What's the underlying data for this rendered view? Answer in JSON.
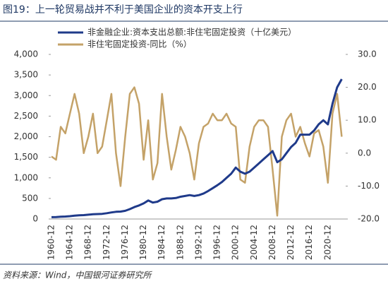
{
  "chart_data": {
    "type": "line",
    "title": "图19：上一轮贸易战并不利于美国企业的资本开支上行",
    "source": "资料来源：Wind，中国银河证券研究所",
    "categories": [
      "1960-12",
      null,
      null,
      null,
      "1964-12",
      null,
      null,
      null,
      "1968-12",
      null,
      null,
      null,
      "1972-12",
      null,
      null,
      null,
      "1976-12",
      null,
      null,
      null,
      "1980-12",
      null,
      null,
      null,
      "1984-12",
      null,
      null,
      null,
      "1988-12",
      null,
      null,
      null,
      "1992-12",
      null,
      null,
      null,
      "1996-12",
      null,
      null,
      null,
      "2000-12",
      null,
      null,
      null,
      "2004-12",
      null,
      null,
      null,
      "2008-12",
      null,
      null,
      null,
      "2012-12",
      null,
      null,
      null,
      "2016-12",
      null,
      null,
      null,
      "2020-12",
      null,
      null,
      null
    ],
    "series": [
      {
        "name": "非金融企业:资本支出总额:非住宅固定投资（十亿美元）",
        "color": "#1f3a8a",
        "axis": "y",
        "values": [
          45,
          48,
          55,
          60,
          68,
          80,
          90,
          95,
          105,
          115,
          120,
          125,
          140,
          160,
          175,
          180,
          200,
          240,
          290,
          330,
          380,
          450,
          400,
          420,
          480,
          500,
          500,
          510,
          540,
          560,
          580,
          560,
          580,
          620,
          680,
          750,
          820,
          900,
          1000,
          1100,
          1250,
          1150,
          1100,
          1150,
          1250,
          1350,
          1450,
          1550,
          1650,
          1380,
          1450,
          1600,
          1750,
          1850,
          2050,
          2050,
          2050,
          2150,
          2300,
          2400,
          2300,
          2800,
          3200,
          3400
        ]
      },
      {
        "name": "非住宅固定投资-同比（%）",
        "color": "#c4a268",
        "axis": "y2",
        "values": [
          -1,
          -2,
          8,
          6,
          12,
          18,
          12,
          0,
          5,
          12,
          0,
          2,
          10,
          18,
          0,
          -10,
          5,
          18,
          20,
          15,
          -2,
          10,
          -8,
          -3,
          18,
          5,
          -5,
          1,
          8,
          5,
          0,
          -8,
          3,
          8,
          9,
          12,
          10,
          10,
          12,
          9,
          8,
          -8,
          -9,
          2,
          8,
          10,
          10,
          8,
          -5,
          -19,
          5,
          10,
          12,
          5,
          8,
          3,
          -1,
          6,
          7,
          2,
          -9,
          12,
          18,
          5
        ]
      }
    ],
    "ylim": [
      0,
      4000
    ],
    "yticks": [
      0,
      500,
      {
        "value": 1000,
        "label": "1,000"
      },
      {
        "value": 1500,
        "label": "1,500"
      },
      {
        "value": 2000,
        "label": "2,000"
      },
      {
        "value": 2500,
        "label": "2,500"
      },
      {
        "value": 3000,
        "label": "3,000"
      },
      {
        "value": 3500,
        "label": "3,500"
      },
      {
        "value": 4000,
        "label": "4,000"
      }
    ],
    "y2lim": [
      -20,
      30
    ],
    "y2ticks": [
      {
        "value": -20,
        "label": "-20.0"
      },
      {
        "value": -10,
        "label": "-10.0"
      },
      {
        "value": 0,
        "label": "0.0"
      },
      {
        "value": 10,
        "label": "10.0"
      },
      {
        "value": 20,
        "label": "20.0"
      },
      {
        "value": 30,
        "label": "30.0"
      }
    ]
  }
}
